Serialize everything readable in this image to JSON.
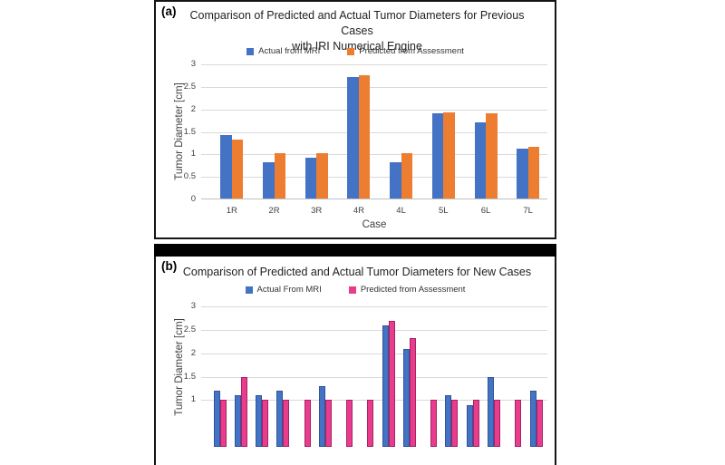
{
  "figure": {
    "panel_a_label": "(a)",
    "panel_b_label": "(b)"
  },
  "colors": {
    "actual_blue": "#4472C4",
    "predicted_orange": "#ED7D31",
    "predicted_pink": "#EA3B8C",
    "divider_black": "#000000"
  },
  "chart_data": [
    {
      "id": "a",
      "type": "bar",
      "title": "Comparison of Predicted and Actual Tumor Diameters for Previous Cases with IRI Numerical Engine",
      "title_lines": [
        "Comparison of Predicted and Actual Tumor Diameters for Previous Cases",
        "with IRI Numerical Engine"
      ],
      "xlabel": "Case",
      "ylabel": "Tumor Diameter [cm]",
      "ylim": [
        0,
        3
      ],
      "yticks": [
        0,
        0.5,
        1,
        1.5,
        2,
        2.5,
        3
      ],
      "grid": true,
      "legend_position": "top",
      "categories": [
        "1R",
        "2R",
        "3R",
        "4R",
        "4L",
        "5L",
        "6L",
        "7L"
      ],
      "series": [
        {
          "name": "Actual from MRI",
          "color": "#4472C4",
          "values": [
            1.4,
            0.8,
            0.9,
            2.7,
            0.8,
            1.9,
            1.7,
            1.1
          ]
        },
        {
          "name": "Predicted from Assessment",
          "color": "#ED7D31",
          "values": [
            1.3,
            1.0,
            1.0,
            2.73,
            1.0,
            1.92,
            1.9,
            1.15
          ]
        }
      ]
    },
    {
      "id": "b",
      "type": "bar",
      "title": "Comparison of Predicted and Actual Tumor Diameters for New Cases",
      "ylabel": "Tumor Diameter [cm]",
      "ylim": [
        0,
        3
      ],
      "yticks": [
        1,
        1.5,
        2,
        2.5,
        3
      ],
      "grid": true,
      "legend_position": "top",
      "cropped_note": "bottom of panel cut off by screenshot edge; x-axis labels not visible",
      "categories": null,
      "series": [
        {
          "name": "Actual From MRI",
          "color": "#4472C4",
          "border": "#2F5597",
          "values": [
            1.2,
            1.1,
            1.1,
            1.2,
            null,
            1.3,
            null,
            null,
            2.6,
            2.1,
            null,
            1.1,
            0.9,
            1.5,
            null,
            1.2
          ]
        },
        {
          "name": "Predicted from Assessment",
          "color": "#EA3B8C",
          "border": "#A12667",
          "values": [
            1.0,
            1.5,
            1.0,
            1.0,
            1.0,
            1.0,
            1.0,
            1.0,
            2.7,
            2.33,
            1.0,
            1.0,
            1.0,
            1.0,
            1.0,
            1.0
          ]
        }
      ]
    }
  ]
}
